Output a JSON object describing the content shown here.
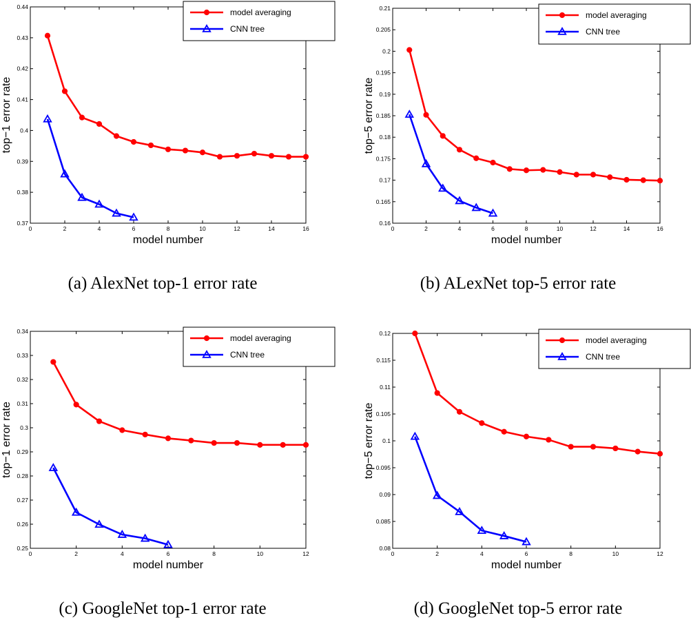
{
  "chart_data": [
    {
      "type": "line",
      "caption": "(a)  AlexNet top-1 error rate",
      "xlabel": "model number",
      "ylabel": "top−1 error rate",
      "xlim": [
        0,
        16
      ],
      "ylim": [
        0.37,
        0.44
      ],
      "xticks": [
        "0",
        "2",
        "4",
        "6",
        "8",
        "10",
        "12",
        "14",
        "16"
      ],
      "yticks": [
        "0.37",
        "0.38",
        "0.39",
        "0.4",
        "0.41",
        "0.42",
        "0.43",
        "0.44"
      ],
      "legend_position": "top-right",
      "series": [
        {
          "name": "model averaging",
          "color": "#ff0000",
          "marker": "circle",
          "x": [
            1,
            2,
            3,
            4,
            5,
            6,
            7,
            8,
            9,
            10,
            11,
            12,
            13,
            14,
            15,
            16
          ],
          "values": [
            0.4307,
            0.4127,
            0.4042,
            0.4021,
            0.3982,
            0.3963,
            0.3952,
            0.3939,
            0.3935,
            0.3929,
            0.3915,
            0.3918,
            0.3925,
            0.3918,
            0.3915,
            0.3915
          ]
        },
        {
          "name": "CNN tree",
          "color": "#0000ff",
          "marker": "triangle",
          "x": [
            1,
            2,
            3,
            4,
            5,
            6
          ],
          "values": [
            0.4037,
            0.3859,
            0.3783,
            0.3761,
            0.3732,
            0.3719
          ]
        }
      ]
    },
    {
      "type": "line",
      "caption": "(b)  ALexNet top-5 error rate",
      "xlabel": "model number",
      "ylabel": "top−5 error rate",
      "xlim": [
        0,
        16
      ],
      "ylim": [
        0.16,
        0.21
      ],
      "xticks": [
        "0",
        "2",
        "4",
        "6",
        "8",
        "10",
        "12",
        "14",
        "16"
      ],
      "yticks": [
        "0.16",
        "0.165",
        "0.17",
        "0.175",
        "0.18",
        "0.185",
        "0.19",
        "0.195",
        "0.2",
        "0.205",
        "0.21"
      ],
      "legend_position": "top-right",
      "series": [
        {
          "name": "model averaging",
          "color": "#ff0000",
          "marker": "circle",
          "x": [
            1,
            2,
            3,
            4,
            5,
            6,
            7,
            8,
            9,
            10,
            11,
            12,
            13,
            14,
            15,
            16
          ],
          "values": [
            0.2003,
            0.1852,
            0.1803,
            0.1771,
            0.1751,
            0.1741,
            0.1726,
            0.1723,
            0.1724,
            0.1719,
            0.1713,
            0.1713,
            0.1707,
            0.1701,
            0.17,
            0.1699
          ]
        },
        {
          "name": "CNN tree",
          "color": "#0000ff",
          "marker": "triangle",
          "x": [
            1,
            2,
            3,
            4,
            5,
            6
          ],
          "values": [
            0.1853,
            0.1738,
            0.1681,
            0.1652,
            0.1636,
            0.1623
          ]
        }
      ]
    },
    {
      "type": "line",
      "caption": "(c)  GoogleNet top-1 error rate",
      "xlabel": "model number",
      "ylabel": "top−1 error rate",
      "xlim": [
        0,
        12
      ],
      "ylim": [
        0.25,
        0.34
      ],
      "xticks": [
        "0",
        "2",
        "4",
        "6",
        "8",
        "10",
        "12"
      ],
      "yticks": [
        "0.25",
        "0.26",
        "0.27",
        "0.28",
        "0.29",
        "0.3",
        "0.31",
        "0.32",
        "0.33",
        "0.34"
      ],
      "legend_position": "top-right",
      "series": [
        {
          "name": "model averaging",
          "color": "#ff0000",
          "marker": "circle",
          "x": [
            1,
            2,
            3,
            4,
            5,
            6,
            7,
            8,
            9,
            10,
            11,
            12
          ],
          "values": [
            0.3273,
            0.3096,
            0.3027,
            0.299,
            0.2972,
            0.2956,
            0.2947,
            0.2937,
            0.2937,
            0.2929,
            0.2929,
            0.2929
          ]
        },
        {
          "name": "CNN tree",
          "color": "#0000ff",
          "marker": "triangle",
          "x": [
            1,
            2,
            3,
            4,
            5,
            6
          ],
          "values": [
            0.2834,
            0.2649,
            0.2599,
            0.2557,
            0.2541,
            0.2515
          ]
        }
      ]
    },
    {
      "type": "line",
      "caption": "(d)  GoogleNet top-5 error rate",
      "xlabel": "model number",
      "ylabel": "top−5 error rate",
      "xlim": [
        0,
        12
      ],
      "ylim": [
        0.08,
        0.12
      ],
      "xticks": [
        "0",
        "2",
        "4",
        "6",
        "8",
        "10",
        "12"
      ],
      "yticks": [
        "0.08",
        "0.085",
        "0.09",
        "0.095",
        "0.1",
        "0.105",
        "0.11",
        "0.115",
        "0.12"
      ],
      "legend_position": "top-right",
      "series": [
        {
          "name": "model averaging",
          "color": "#ff0000",
          "marker": "circle",
          "x": [
            1,
            2,
            3,
            4,
            5,
            6,
            7,
            8,
            9,
            10,
            11,
            12
          ],
          "values": [
            0.12,
            0.1089,
            0.1054,
            0.1033,
            0.1017,
            0.1008,
            0.1002,
            0.0989,
            0.0989,
            0.0986,
            0.098,
            0.0976
          ]
        },
        {
          "name": "CNN tree",
          "color": "#0000ff",
          "marker": "triangle",
          "x": [
            1,
            2,
            3,
            4,
            5,
            6
          ],
          "values": [
            0.1008,
            0.0898,
            0.0868,
            0.0833,
            0.0823,
            0.0812
          ]
        }
      ]
    }
  ]
}
